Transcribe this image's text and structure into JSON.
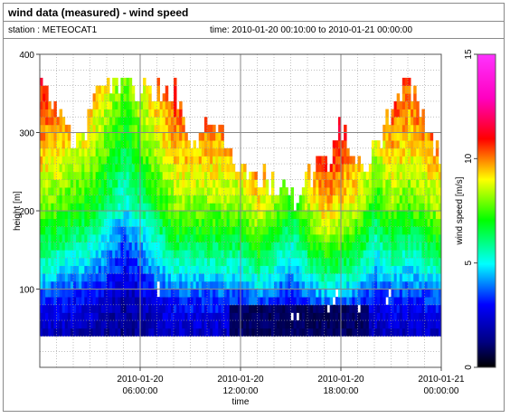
{
  "title": "wind data (measured) - wind speed",
  "station_line": "station : METEOCAT1",
  "time_line": "time: 2010-01-20 00:10:00 to 2010-01-21 00:00:00",
  "chart_data": {
    "type": "heatmap",
    "xlabel": "time",
    "ylabel": "height [m]",
    "colorbar_label": "wind speed [m/s]",
    "x_range_hours": [
      0,
      24
    ],
    "x_ticks": [
      {
        "hour": 6,
        "line1": "2010-01-20",
        "line2": "06:00:00"
      },
      {
        "hour": 12,
        "line1": "2010-01-20",
        "line2": "12:00:00"
      },
      {
        "hour": 18,
        "line1": "2010-01-20",
        "line2": "18:00:00"
      },
      {
        "hour": 24,
        "line1": "2010-01-21",
        "line2": "00:00:00"
      }
    ],
    "ylim": [
      0,
      400
    ],
    "y_ticks": [
      "100",
      "200",
      "300",
      "400"
    ],
    "colorbar_range": [
      0,
      15
    ],
    "colorbar_ticks": [
      "0",
      "5",
      "10",
      "15"
    ],
    "grid": true,
    "data_height_range": [
      40,
      370
    ],
    "height_bin_m": 10,
    "time_bin_minutes": 10,
    "top_of_valid_data_by_hour": [
      {
        "hour": 0,
        "height": 365
      },
      {
        "hour": 1,
        "height": 330
      },
      {
        "hour": 2,
        "height": 280
      },
      {
        "hour": 3,
        "height": 320
      },
      {
        "hour": 4,
        "height": 360
      },
      {
        "hour": 6,
        "height": 350
      },
      {
        "hour": 8,
        "height": 355
      },
      {
        "hour": 9,
        "height": 270
      },
      {
        "hour": 10,
        "height": 310
      },
      {
        "hour": 11,
        "height": 290
      },
      {
        "hour": 12,
        "height": 250
      },
      {
        "hour": 13,
        "height": 240
      },
      {
        "hour": 14,
        "height": 230
      },
      {
        "hour": 15,
        "height": 210
      },
      {
        "hour": 16,
        "height": 240
      },
      {
        "hour": 17,
        "height": 255
      },
      {
        "hour": 18,
        "height": 300
      },
      {
        "hour": 19,
        "height": 260
      },
      {
        "hour": 20,
        "height": 270
      },
      {
        "hour": 21,
        "height": 330
      },
      {
        "hour": 22,
        "height": 360
      },
      {
        "hour": 23,
        "height": 300
      },
      {
        "hour": 24,
        "height": 260
      }
    ],
    "speed_profile": [
      {
        "height": 40,
        "speed": 2.0
      },
      {
        "height": 80,
        "speed": 3.0
      },
      {
        "height": 120,
        "speed": 4.8
      },
      {
        "height": 160,
        "speed": 6.2
      },
      {
        "height": 200,
        "speed": 7.5
      },
      {
        "height": 260,
        "speed": 8.8
      },
      {
        "height": 320,
        "speed": 9.8
      },
      {
        "height": 370,
        "speed": 10.5
      }
    ],
    "speed_offset_by_hour": [
      {
        "hour": 0,
        "offset": 0.5
      },
      {
        "hour": 3,
        "offset": -0.5
      },
      {
        "hour": 5,
        "offset": -2.5
      },
      {
        "hour": 6,
        "offset": -1.5
      },
      {
        "hour": 8,
        "offset": 0.5
      },
      {
        "hour": 10,
        "offset": 0.5
      },
      {
        "hour": 12,
        "offset": 0.5
      },
      {
        "hour": 13,
        "offset": 1.5
      },
      {
        "hour": 14,
        "offset": 0.5
      },
      {
        "hour": 15,
        "offset": -0.5
      },
      {
        "hour": 16,
        "offset": 1.0
      },
      {
        "hour": 17,
        "offset": 2.0
      },
      {
        "hour": 18,
        "offset": 1.5
      },
      {
        "hour": 19,
        "offset": 1.0
      },
      {
        "hour": 20,
        "offset": -0.5
      },
      {
        "hour": 21,
        "offset": 0.5
      },
      {
        "hour": 22,
        "offset": 0.0
      },
      {
        "hour": 23,
        "offset": 0.5
      },
      {
        "hour": 24,
        "offset": 1.0
      }
    ],
    "calm_layer": {
      "hour_start": 11.2,
      "hour_end": 19.5,
      "height_start": 40,
      "height_end": 80,
      "speed": 0.6
    },
    "missing_cells": [
      {
        "hour": 7.0,
        "height": 100
      },
      {
        "hour": 7.0,
        "height": 90
      },
      {
        "hour": 7.8,
        "height": 95
      },
      {
        "hour": 12.4,
        "height": 60
      },
      {
        "hour": 15.0,
        "height": 60
      },
      {
        "hour": 15.3,
        "height": 60
      },
      {
        "hour": 17.2,
        "height": 70
      },
      {
        "hour": 17.5,
        "height": 80
      },
      {
        "hour": 17.7,
        "height": 90
      },
      {
        "hour": 19.0,
        "height": 70
      },
      {
        "hour": 20.7,
        "height": 80
      },
      {
        "hour": 20.8,
        "height": 90
      }
    ]
  }
}
